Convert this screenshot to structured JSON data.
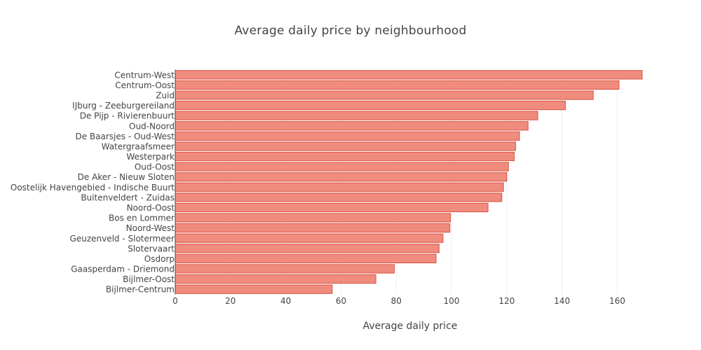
{
  "chart_data": {
    "type": "bar",
    "orientation": "horizontal",
    "title": "Average daily price by neighbourhood",
    "xlabel": "Average daily price",
    "ylabel": "",
    "xlim": [
      0,
      170
    ],
    "x_ticks": [
      0,
      20,
      40,
      60,
      80,
      100,
      120,
      140,
      160
    ],
    "grid": true,
    "bar_color": "#f08c7e",
    "bar_edge_color": "#d9503f",
    "categories": [
      "Centrum-West",
      "Centrum-Oost",
      "Zuid",
      "IJburg - Zeeburgereiland",
      "De Pijp - Rivierenbuurt",
      "Oud-Noord",
      "De Baarsjes - Oud-West",
      "Watergraafsmeer",
      "Westerpark",
      "Oud-Oost",
      "De Aker - Nieuw Sloten",
      "Oostelijk Havengebied - Indische Buurt",
      "Buitenveldert - Zuidas",
      "Noord-Oost",
      "Bos en Lommer",
      "Noord-West",
      "Geuzenveld - Slotermeer",
      "Slotervaart",
      "Osdorp",
      "Gaasperdam - Driemond",
      "Bijlmer-Oost",
      "Bijlmer-Centrum"
    ],
    "values": [
      169,
      160.6,
      151.3,
      141.2,
      131.2,
      127.7,
      124.6,
      123.2,
      122.7,
      120.6,
      120.0,
      118.8,
      118.2,
      113.2,
      99.6,
      99.4,
      96.9,
      95.5,
      94.4,
      79.3,
      72.6,
      56.8
    ]
  }
}
